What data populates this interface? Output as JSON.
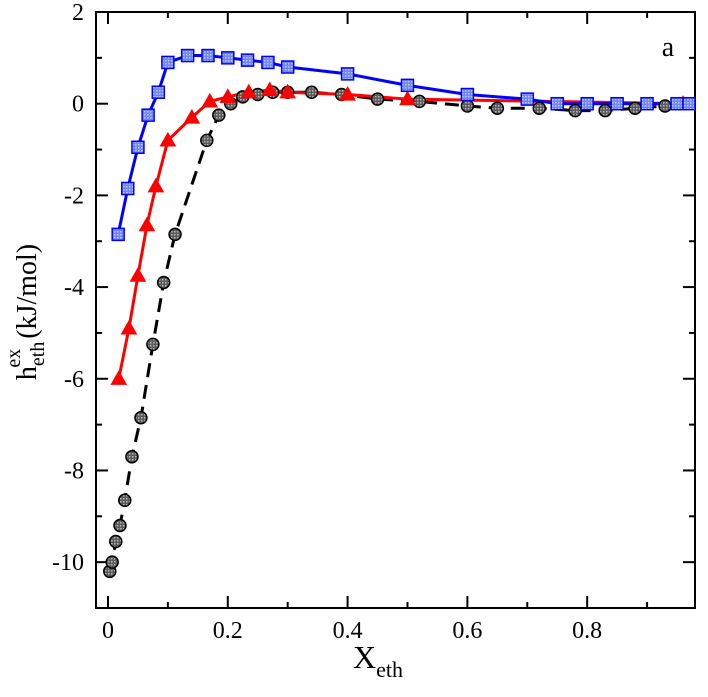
{
  "chart_data": {
    "type": "line",
    "panel_label": "a",
    "xlabel": {
      "main": "X",
      "sub": "eth"
    },
    "ylabel": {
      "main": "h",
      "sub": "eth",
      "sup": "ex",
      "unit": "(kJ/mol)"
    },
    "xlim": [
      -0.02,
      0.98
    ],
    "ylim": [
      -11,
      2
    ],
    "xticks": [
      0,
      0.2,
      0.4,
      0.6,
      0.8
    ],
    "xtick_labels": [
      "0",
      "0.2",
      "0.4",
      "0.6",
      "0.8"
    ],
    "yticks": [
      -10,
      -8,
      -6,
      -4,
      -2,
      0,
      2
    ],
    "ytick_labels": [
      "-10",
      "-8",
      "-6",
      "-4",
      "-2",
      "0",
      "2"
    ],
    "series": [
      {
        "name": "black-circles-dashed",
        "color": "#000000",
        "marker_fill": "#9a9a9a",
        "marker": "circle",
        "line_style": "dashed",
        "x": [
          0.003,
          0.007,
          0.013,
          0.02,
          0.028,
          0.04,
          0.055,
          0.075,
          0.093,
          0.112,
          0.165,
          0.185,
          0.205,
          0.225,
          0.25,
          0.275,
          0.3,
          0.34,
          0.39,
          0.45,
          0.52,
          0.6,
          0.65,
          0.72,
          0.78,
          0.83,
          0.88,
          0.93
        ],
        "y": [
          -10.2,
          -10.0,
          -9.55,
          -9.2,
          -8.65,
          -7.7,
          -6.85,
          -5.25,
          -3.9,
          -2.85,
          -0.8,
          -0.25,
          0.0,
          0.15,
          0.2,
          0.25,
          0.25,
          0.25,
          0.2,
          0.1,
          0.05,
          -0.05,
          -0.1,
          -0.1,
          -0.15,
          -0.15,
          -0.1,
          -0.05
        ]
      },
      {
        "name": "red-triangles",
        "color": "#ff0000",
        "marker": "triangle",
        "line_style": "solid",
        "x": [
          0.018,
          0.035,
          0.05,
          0.065,
          0.08,
          0.1,
          0.14,
          0.17,
          0.2,
          0.235,
          0.27,
          0.3,
          0.4,
          0.5,
          0.96
        ],
        "y": [
          -6.0,
          -4.9,
          -3.75,
          -2.65,
          -1.8,
          -0.8,
          -0.3,
          0.05,
          0.15,
          0.25,
          0.3,
          0.25,
          0.2,
          0.1,
          0.0
        ]
      },
      {
        "name": "blue-squares",
        "color": "#0000ff",
        "marker_fill": "#8fa0f5",
        "marker": "square",
        "line_style": "solid",
        "x": [
          0.017,
          0.033,
          0.05,
          0.067,
          0.084,
          0.1,
          0.133,
          0.167,
          0.2,
          0.233,
          0.267,
          0.3,
          0.4,
          0.5,
          0.6,
          0.7,
          0.75,
          0.8,
          0.85,
          0.9,
          0.95,
          0.97
        ],
        "y": [
          -2.85,
          -1.85,
          -0.95,
          -0.25,
          0.25,
          0.9,
          1.05,
          1.05,
          1.0,
          0.95,
          0.9,
          0.8,
          0.65,
          0.4,
          0.2,
          0.1,
          0.0,
          0.0,
          0.0,
          0.0,
          0.0,
          0.0
        ]
      }
    ]
  }
}
